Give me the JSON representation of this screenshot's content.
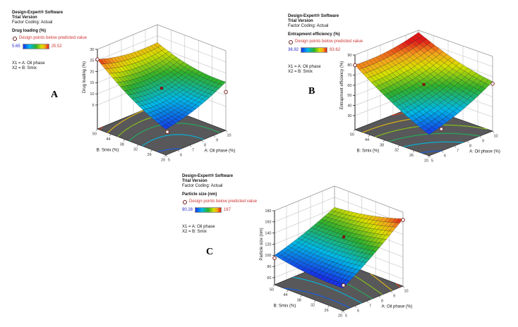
{
  "page": {
    "background": "#ffffff"
  },
  "panels": [
    {
      "label": "A",
      "legend": {
        "software": "Design-Expert® Software",
        "version": "Trial Version",
        "coding": "Factor Coding: Actual",
        "response": "Drug loading (%)",
        "note": "Design points below predicted value",
        "scale_min": "5.65",
        "scale_max": "25.52",
        "x1": "X1 = A: Oil phase",
        "x2": "X2 = B: Smix"
      }
    },
    {
      "label": "B",
      "legend": {
        "software": "Design-Expert® Software",
        "version": "Trial Version",
        "coding": "Factor Coding: Actual",
        "response": "Entrapment efficiency (%)",
        "note": "Design points below predicted value",
        "scale_min": "36.92",
        "scale_max": "83.62",
        "x1": "X1 = A: Oil phase",
        "x2": "X2 = B: Smix"
      }
    },
    {
      "label": "C",
      "legend": {
        "software": "Design-Expert® Software",
        "version": "Trial Version",
        "coding": "Factor Coding: Actual",
        "response": "Particle size (nm)",
        "note": "Design points below predicted value",
        "scale_min": "90.28",
        "scale_max": "167",
        "x1": "X1 = A: Oil phase",
        "x2": "X2 = B: Smix"
      }
    }
  ],
  "colors": {
    "scale_text_min": "#2424c8",
    "scale_text_max": "#cd3333",
    "note_text": "#cd3333",
    "floor": "#58585a",
    "wall_grid": "#bdbdbd",
    "mesh_line": "rgba(15,15,15,0.6)",
    "colormap": [
      [
        0,
        "#1732e8"
      ],
      [
        0.25,
        "#00b9e8"
      ],
      [
        0.5,
        "#2db02d"
      ],
      [
        0.72,
        "#d8e000"
      ],
      [
        0.86,
        "#f5a21b"
      ],
      [
        1,
        "#e01818"
      ]
    ]
  },
  "chart_data": [
    {
      "type": "surface3d",
      "panel": "A",
      "zlabel": "Drug loading (%)",
      "xlabel": "A: Oil phase (%)",
      "ylabel": "B: Smix (%)",
      "x_range": [
        5,
        10
      ],
      "x_ticks": [
        "5",
        "6",
        "7",
        "8",
        "9",
        "10"
      ],
      "y_range": [
        20,
        50
      ],
      "y_ticks": [
        "20",
        "26",
        "32",
        "38",
        "44",
        "50"
      ],
      "z_range": [
        5,
        30
      ],
      "z_ticks": [
        "5",
        "10",
        "15",
        "20",
        "25",
        "30"
      ],
      "scale_min": 5.65,
      "scale_max": 25.52,
      "corner_values": {
        "A5_B20": 5.8,
        "A10_B20": 16,
        "A5_B50": 25.5,
        "A10_B50": 22
      },
      "sag_a": 1.5,
      "sag_b": 2,
      "sag_center": 1,
      "design_points": [
        {
          "a": 5,
          "b": 50,
          "z": 25.5,
          "style": "open"
        },
        {
          "a": 10,
          "b": 20,
          "z": 11.5,
          "style": "open"
        },
        {
          "a": 7.5,
          "b": 32.5,
          "z": "floor",
          "style": "open"
        },
        {
          "a": 7.5,
          "b": 35,
          "z": "surface",
          "style": "filled"
        }
      ]
    },
    {
      "type": "surface3d",
      "panel": "B",
      "zlabel": "Entrapment efficiency (%)",
      "xlabel": "A: Oil phase (%)",
      "ylabel": "B: Smix (%)",
      "x_range": [
        5,
        10
      ],
      "x_ticks": [
        "5",
        "6",
        "7",
        "8",
        "9",
        "10"
      ],
      "y_range": [
        20,
        50
      ],
      "y_ticks": [
        "20",
        "26",
        "32",
        "38",
        "44",
        "50"
      ],
      "z_range": [
        30,
        90
      ],
      "z_ticks": [
        "30",
        "40",
        "50",
        "60",
        "70",
        "80",
        "90"
      ],
      "scale_min": 36.92,
      "scale_max": 83.62,
      "corner_values": {
        "A5_B20": 37,
        "A10_B20": 65,
        "A5_B50": 80,
        "A10_B50": 88
      },
      "sag_a": 3,
      "sag_b": 3,
      "sag_center": 0,
      "design_points": [
        {
          "a": 5,
          "b": 50,
          "z": 80,
          "style": "open"
        },
        {
          "a": 10,
          "b": 20,
          "z": 63,
          "style": "open"
        },
        {
          "a": 8.3,
          "b": 32,
          "z": "floor",
          "style": "open"
        },
        {
          "a": 7.5,
          "b": 35,
          "z": "surface",
          "style": "filled"
        }
      ]
    },
    {
      "type": "surface3d",
      "panel": "C",
      "zlabel": "Particle size (nm)",
      "xlabel": "A: Oil phase (%)",
      "ylabel": "B: Smix (%)",
      "x_range": [
        5,
        10
      ],
      "x_ticks": [
        "5",
        "6",
        "7",
        "8",
        "9",
        "10"
      ],
      "y_range": [
        20,
        50
      ],
      "y_ticks": [
        "20",
        "26",
        "32",
        "38",
        "44",
        "50"
      ],
      "z_range": [
        60,
        180
      ],
      "z_ticks": [
        "60",
        "80",
        "100",
        "120",
        "140",
        "160",
        "180"
      ],
      "scale_min": 90.28,
      "scale_max": 167,
      "corner_values": {
        "A5_B20": 88,
        "A10_B20": 168,
        "A5_B50": 100,
        "A10_B50": 142
      },
      "sag_a": 3,
      "sag_b": 4,
      "sag_center": 0,
      "design_points": [
        {
          "a": 5,
          "b": 50,
          "z": 95,
          "style": "open"
        },
        {
          "a": 10,
          "b": 20,
          "z": 166,
          "style": "open"
        },
        {
          "a": 7.7,
          "b": 34,
          "z": "floor",
          "style": "open"
        },
        {
          "a": 8.2,
          "b": 36.5,
          "z": "surface",
          "style": "filled"
        }
      ]
    }
  ]
}
